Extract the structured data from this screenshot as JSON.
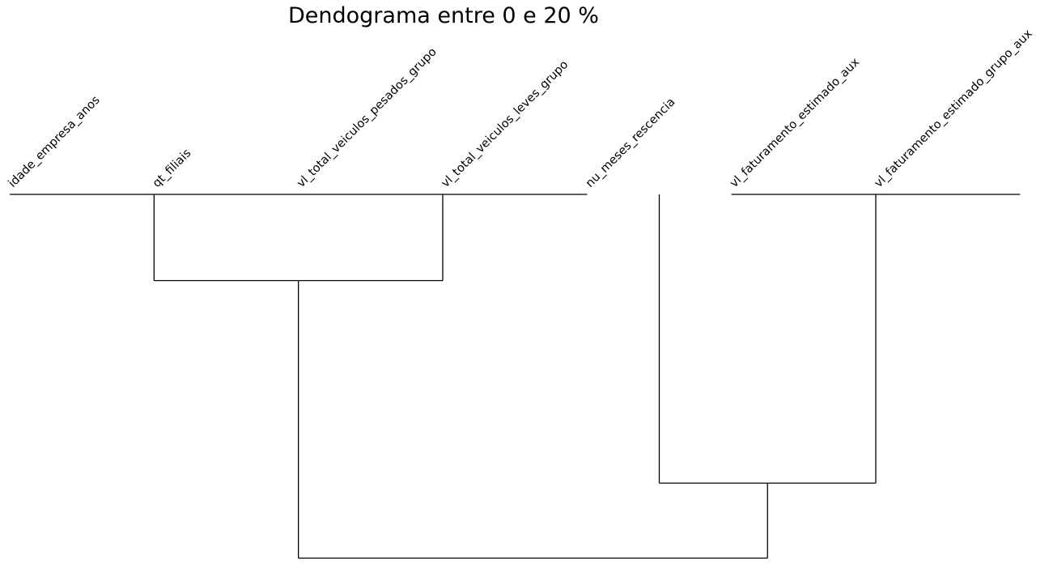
{
  "chart_data": {
    "type": "dendrogram",
    "title": "Dendograma entre 0 e 20 %",
    "leaves": [
      "idade_empresa_anos",
      "qt_filiais",
      "vl_total_veiculos_pesados_grupo",
      "vl_total_veiculos_leves_grupo",
      "nu_meses_rescencia",
      "vl_faturamento_estimado_aux",
      "vl_faturamento_estimado_grupo_aux"
    ],
    "merges": [
      {
        "left": [
          0
        ],
        "right": [
          1
        ],
        "height": 0
      },
      {
        "left": [
          2
        ],
        "right": [
          3
        ],
        "height": 0
      },
      {
        "left": [
          5
        ],
        "right": [
          6
        ],
        "height": 0
      },
      {
        "left": [
          0,
          1
        ],
        "right": [
          2,
          3
        ],
        "height": 0.23
      },
      {
        "left": [
          4
        ],
        "right": [
          5,
          6
        ],
        "height": 0.77
      },
      {
        "left": [
          0,
          1,
          2,
          3
        ],
        "right": [
          4,
          5,
          6
        ],
        "height": 0.97
      }
    ],
    "yaxis": {
      "inverted": true,
      "ticks": false
    },
    "grid": false,
    "colors": {
      "lines": "#000000",
      "text": "#000000",
      "background": "#ffffff"
    }
  }
}
